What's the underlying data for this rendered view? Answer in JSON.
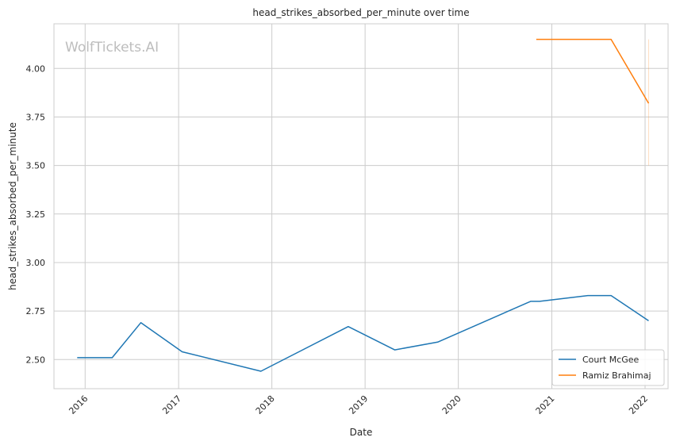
{
  "chart_data": {
    "type": "line",
    "title": "head_strikes_absorbed_per_minute over time",
    "xlabel": "Date",
    "ylabel": "head_strikes_absorbed_per_minute",
    "watermark": "WolfTickets.AI",
    "x_ticks": [
      "2016",
      "2017",
      "2018",
      "2019",
      "2020",
      "2021",
      "2022"
    ],
    "y_ticks": [
      "2.50",
      "2.75",
      "3.00",
      "3.25",
      "3.50",
      "3.75",
      "4.00"
    ],
    "xlim": [
      "2015-09-01",
      "2022-04-01"
    ],
    "ylim": [
      2.35,
      4.23
    ],
    "grid": true,
    "legend_position": "lower-right",
    "series": [
      {
        "name": "Court McGee",
        "color": "#1f77b4",
        "points": [
          {
            "date": "2015-12-01",
            "value": 2.51
          },
          {
            "date": "2016-04-16",
            "value": 2.51
          },
          {
            "date": "2016-08-06",
            "value": 2.69
          },
          {
            "date": "2017-01-15",
            "value": 2.54
          },
          {
            "date": "2017-11-19",
            "value": 2.44
          },
          {
            "date": "2018-10-27",
            "value": 2.67
          },
          {
            "date": "2019-04-27",
            "value": 2.55
          },
          {
            "date": "2019-10-12",
            "value": 2.59
          },
          {
            "date": "2020-10-10",
            "value": 2.8
          },
          {
            "date": "2020-11-14",
            "value": 2.8
          },
          {
            "date": "2021-05-22",
            "value": 2.83
          },
          {
            "date": "2021-08-21",
            "value": 2.83
          },
          {
            "date": "2022-01-15",
            "value": 2.7
          }
        ]
      },
      {
        "name": "Ramiz Brahimaj",
        "color": "#ff7f0e",
        "points": [
          {
            "date": "2020-11-01",
            "value": 4.15
          },
          {
            "date": "2021-08-21",
            "value": 4.15
          },
          {
            "date": "2022-01-15",
            "value": 3.82
          }
        ],
        "band": {
          "date": "2022-01-15",
          "low": 3.5,
          "high": 4.15
        }
      }
    ]
  }
}
